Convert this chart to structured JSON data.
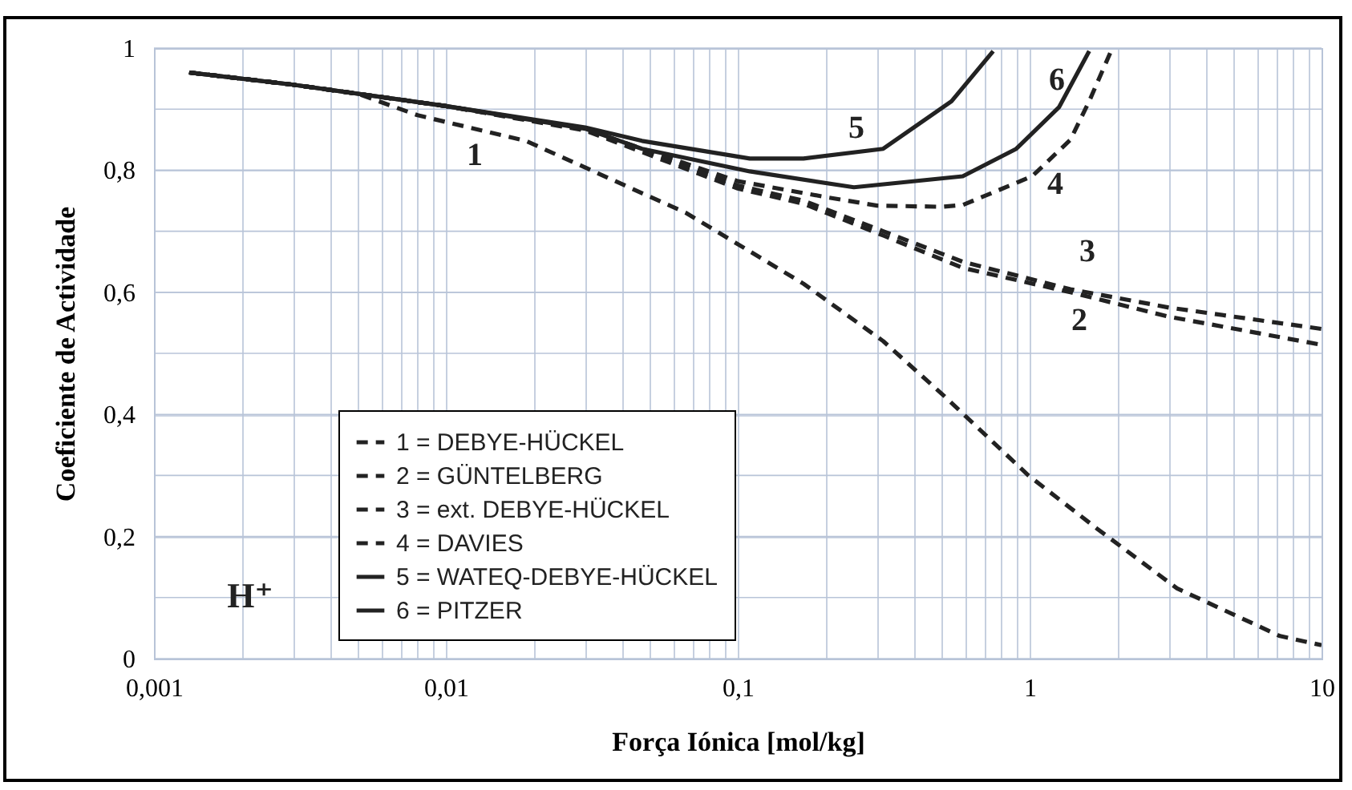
{
  "chart_data": {
    "type": "line",
    "xlabel": "Força Iónica [mol/kg]",
    "ylabel": "Coeficiente de Actividade",
    "log": "x",
    "grid": true,
    "marker": "none",
    "legend": "bottom left",
    "xlim": [
      0.001,
      10
    ],
    "ylim": [
      0,
      1
    ],
    "xticks": [
      {
        "value": 0.001,
        "label": "0,001"
      },
      {
        "value": 0.002,
        "label": null
      },
      {
        "value": 0.003,
        "label": null
      },
      {
        "value": 0.004,
        "label": null
      },
      {
        "value": 0.005,
        "label": null
      },
      {
        "value": 0.006,
        "label": null
      },
      {
        "value": 0.007,
        "label": null
      },
      {
        "value": 0.008,
        "label": null
      },
      {
        "value": 0.009,
        "label": null
      },
      {
        "value": 0.01,
        "label": "0,01"
      },
      {
        "value": 0.02,
        "label": null
      },
      {
        "value": 0.03,
        "label": null
      },
      {
        "value": 0.04,
        "label": null
      },
      {
        "value": 0.05,
        "label": null
      },
      {
        "value": 0.06,
        "label": null
      },
      {
        "value": 0.07,
        "label": null
      },
      {
        "value": 0.08,
        "label": null
      },
      {
        "value": 0.09,
        "label": null
      },
      {
        "value": 0.1,
        "label": "0,1"
      },
      {
        "value": 0.2,
        "label": null
      },
      {
        "value": 0.3,
        "label": null
      },
      {
        "value": 0.4,
        "label": null
      },
      {
        "value": 0.5,
        "label": null
      },
      {
        "value": 0.6,
        "label": null
      },
      {
        "value": 0.7,
        "label": null
      },
      {
        "value": 0.8,
        "label": null
      },
      {
        "value": 0.9,
        "label": null
      },
      1,
      {
        "value": 2,
        "label": null
      },
      {
        "value": 3,
        "label": null
      },
      {
        "value": 4,
        "label": null
      },
      {
        "value": 5,
        "label": null
      },
      {
        "value": 6,
        "label": null
      },
      {
        "value": 7,
        "label": null
      },
      {
        "value": 8,
        "label": null
      },
      {
        "value": 9,
        "label": null
      },
      10
    ],
    "yticks": [
      0,
      {
        "value": 0.1,
        "label": null
      },
      {
        "value": 0.2,
        "label": "0,2"
      },
      {
        "value": 0.3,
        "label": null
      },
      {
        "value": 0.4,
        "label": "0,4"
      },
      {
        "value": 0.5,
        "label": null
      },
      {
        "value": 0.6,
        "label": "0,6"
      },
      {
        "value": 0.7,
        "label": null
      },
      {
        "value": 0.8,
        "label": "0,8"
      },
      {
        "value": 0.9,
        "label": null
      },
      1
    ],
    "series": [
      {
        "name": "1 = DEBYE-HÜCKEL",
        "color": "#222222",
        "line_style": "dashed",
        "x": [
          0.00132,
          0.002,
          0.003,
          0.005,
          0.008,
          0.0188,
          0.0665,
          0.168,
          0.315,
          0.51,
          0.99,
          1.7,
          3.2,
          7.2,
          10
        ],
        "values": [
          0.96,
          0.95,
          0.94,
          0.925,
          0.89,
          0.848,
          0.73,
          0.614,
          0.52,
          0.43,
          0.3,
          0.213,
          0.115,
          0.037,
          0.022
        ]
      },
      {
        "name": "2 = GÜNTELBERG",
        "color": "#222222",
        "line_style": "dashed",
        "x": [
          0.00132,
          0.003,
          0.01,
          0.03,
          0.1,
          0.168,
          0.315,
          0.59,
          1.38,
          3,
          10
        ],
        "values": [
          0.96,
          0.94,
          0.905,
          0.865,
          0.77,
          0.745,
          0.693,
          0.64,
          0.6,
          0.56,
          0.514
        ]
      },
      {
        "name": "3 = ext. DEBYE-HÜCKEL",
        "color": "#222222",
        "line_style": "dashed",
        "x": [
          0.00132,
          0.003,
          0.01,
          0.03,
          0.1,
          0.168,
          0.315,
          0.59,
          1.38,
          3,
          10
        ],
        "values": [
          0.96,
          0.94,
          0.905,
          0.867,
          0.775,
          0.75,
          0.7,
          0.65,
          0.605,
          0.575,
          0.54
        ]
      },
      {
        "name": "4 = DAVIES",
        "color": "#222222",
        "line_style": "dashed",
        "x": [
          0.00132,
          0.003,
          0.01,
          0.03,
          0.1,
          0.2,
          0.3,
          0.5,
          0.59,
          1.02,
          1.38,
          1.6,
          1.9
        ],
        "values": [
          0.96,
          0.94,
          0.905,
          0.867,
          0.782,
          0.756,
          0.742,
          0.74,
          0.743,
          0.79,
          0.85,
          0.913,
          0.995
        ]
      },
      {
        "name": "5 = WATEQ-DEBYE-HÜCKEL",
        "color": "#222222",
        "line_style": "solid",
        "x": [
          0.00132,
          0.003,
          0.01,
          0.03,
          0.047,
          0.11,
          0.168,
          0.315,
          0.54,
          0.75
        ],
        "values": [
          0.96,
          0.94,
          0.905,
          0.87,
          0.848,
          0.819,
          0.819,
          0.835,
          0.913,
          0.995
        ]
      },
      {
        "name": "6 = PITZER",
        "color": "#222222",
        "line_style": "solid",
        "x": [
          0.00132,
          0.003,
          0.01,
          0.03,
          0.047,
          0.11,
          0.25,
          0.59,
          0.9,
          1.26,
          1.6
        ],
        "values": [
          0.96,
          0.94,
          0.905,
          0.868,
          0.835,
          0.798,
          0.772,
          0.79,
          0.835,
          0.903,
          0.995
        ]
      }
    ],
    "annotations": [
      "1",
      "2",
      "3",
      "4",
      "5",
      "6",
      "H⁺"
    ]
  }
}
